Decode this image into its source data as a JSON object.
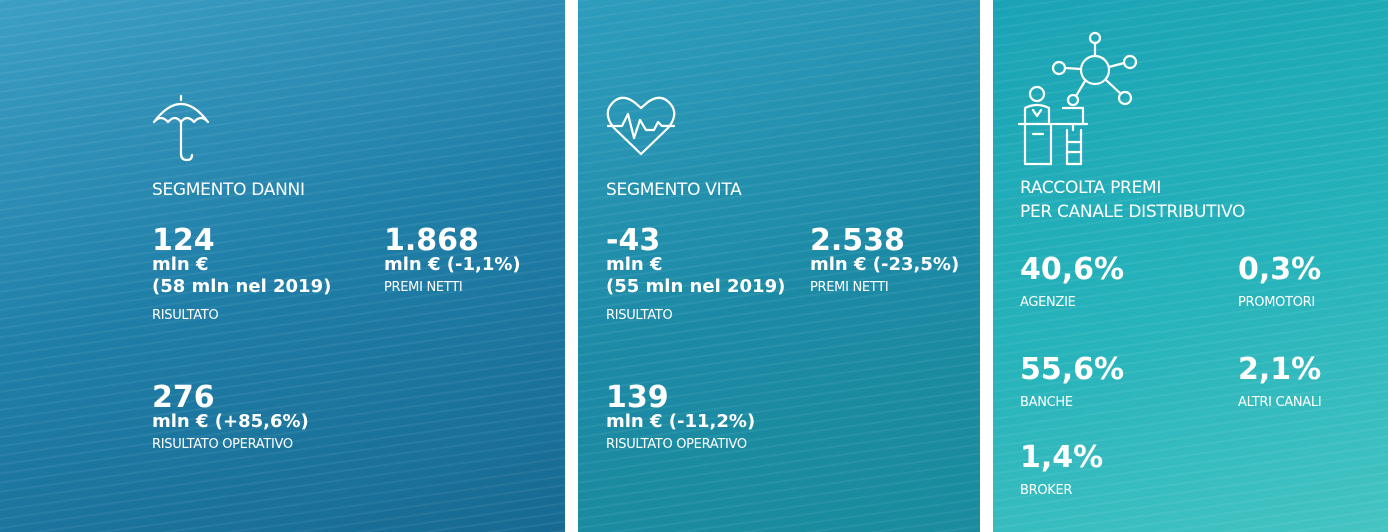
{
  "panels": [
    {
      "title_lines": [
        "SEGMENTO DANNI"
      ],
      "metrics": [
        {
          "value": "124",
          "details": [
            "mln €",
            "(58 mln nel 2019)"
          ],
          "label": "RISULTATO"
        },
        {
          "value": "1.868",
          "details": [
            "mln € (-1,1%)"
          ],
          "label": "PREMI NETTI"
        },
        {
          "value": "276",
          "details": [
            "mln € (+85,6%)"
          ],
          "label": "RISULTATO OPERATIVO"
        }
      ]
    },
    {
      "title_lines": [
        "SEGMENTO VITA"
      ],
      "metrics": [
        {
          "value": "-43",
          "details": [
            "mln €",
            "(55 mln nel 2019)"
          ],
          "label": "RISULTATO"
        },
        {
          "value": "2.538",
          "details": [
            "mln € (-23,5%)"
          ],
          "label": "PREMI NETTI"
        },
        {
          "value": "139",
          "details": [
            "mln € (-11,2%)"
          ],
          "label": "RISULTATO OPERATIVO"
        }
      ]
    },
    {
      "title_lines": [
        "RACCOLTA PREMI",
        "PER CANALE DISTRIBUTIVO"
      ],
      "metrics": [
        {
          "value": "40,6%",
          "details": [],
          "label": "AGENZIE"
        },
        {
          "value": "0,3%",
          "details": [],
          "label": "PROMOTORI"
        },
        {
          "value": "55,6%",
          "details": [],
          "label": "BANCHE"
        },
        {
          "value": "2,1%",
          "details": [],
          "label": "ALTRI CANALI"
        },
        {
          "value": "1,4%",
          "details": [],
          "label": "BROKER"
        }
      ]
    }
  ]
}
